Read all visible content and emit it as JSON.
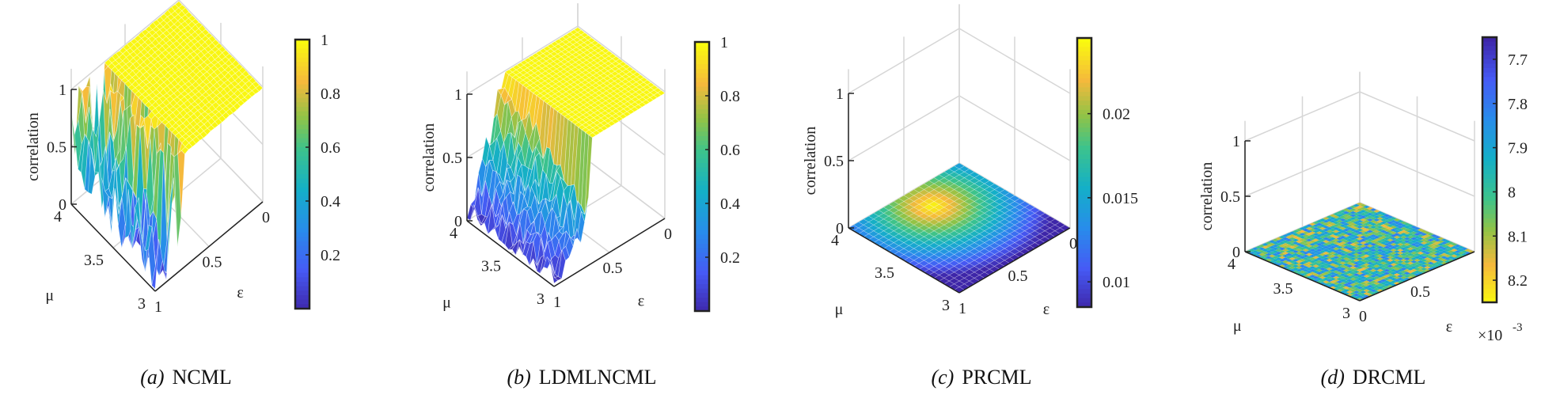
{
  "chart_data": [
    {
      "type": "surface",
      "caption_prefix": "(a)",
      "caption_name": "NCML",
      "zlabel": "correlation",
      "xlabel": "μ",
      "ylabel": "ε",
      "mu_ticks": [
        "3",
        "3.5",
        "4"
      ],
      "eps_ticks": [
        "1",
        "0.5",
        "0"
      ],
      "z_ticks": [
        "0",
        "0.5",
        "1"
      ],
      "zlim": [
        0,
        1
      ],
      "colorbar_ticks": [
        "0.2",
        "0.4",
        "0.6",
        "0.8",
        "1"
      ],
      "colorbar_range": [
        0.0,
        1.0
      ],
      "colormap": "parula",
      "colorbar_reversed": false,
      "colorbar_exponent": "",
      "pattern": "ncml"
    },
    {
      "type": "surface",
      "caption_prefix": "(b)",
      "caption_name": "LDMLNCML",
      "zlabel": "correlation",
      "xlabel": "μ",
      "ylabel": "ε",
      "mu_ticks": [
        "3",
        "3.5",
        "4"
      ],
      "eps_ticks": [
        "1",
        "0.5",
        "0"
      ],
      "z_ticks": [
        "0",
        "0.5",
        "1"
      ],
      "zlim": [
        0,
        1
      ],
      "colorbar_ticks": [
        "0.2",
        "0.4",
        "0.6",
        "0.8",
        "1"
      ],
      "colorbar_range": [
        0.0,
        1.0
      ],
      "colormap": "parula",
      "colorbar_reversed": false,
      "colorbar_exponent": "",
      "pattern": "ldmlncml"
    },
    {
      "type": "surface",
      "caption_prefix": "(c)",
      "caption_name": "PRCML",
      "zlabel": "correlation",
      "xlabel": "μ",
      "ylabel": "ε",
      "mu_ticks": [
        "3",
        "3.5",
        "4"
      ],
      "eps_ticks": [
        "1",
        "0.5",
        "0"
      ],
      "z_ticks": [
        "0",
        "0.5",
        "1"
      ],
      "zlim": [
        0,
        1
      ],
      "colorbar_ticks": [
        "0.01",
        "0.015",
        "0.02"
      ],
      "colorbar_range": [
        0.0085,
        0.0245
      ],
      "colormap": "parula",
      "colorbar_reversed": false,
      "colorbar_exponent": "",
      "pattern": "prcml"
    },
    {
      "type": "surface",
      "caption_prefix": "(d)",
      "caption_name": "DRCML",
      "zlabel": "correlation",
      "xlabel": "μ",
      "ylabel": "ε",
      "mu_ticks": [
        "3",
        "3.5",
        "4"
      ],
      "eps_ticks": [
        "0",
        "0.5"
      ],
      "z_ticks": [
        "0",
        "0.5",
        "1"
      ],
      "zlim": [
        0,
        1
      ],
      "colorbar_ticks": [
        "7.7",
        "7.8",
        "7.9",
        "8",
        "8.1",
        "8.2"
      ],
      "colorbar_range": [
        7.65,
        8.25
      ],
      "colormap": "parula",
      "colorbar_reversed": true,
      "colorbar_exponent": "×10",
      "colorbar_exponent_power": "-3",
      "pattern": "drcml"
    }
  ]
}
